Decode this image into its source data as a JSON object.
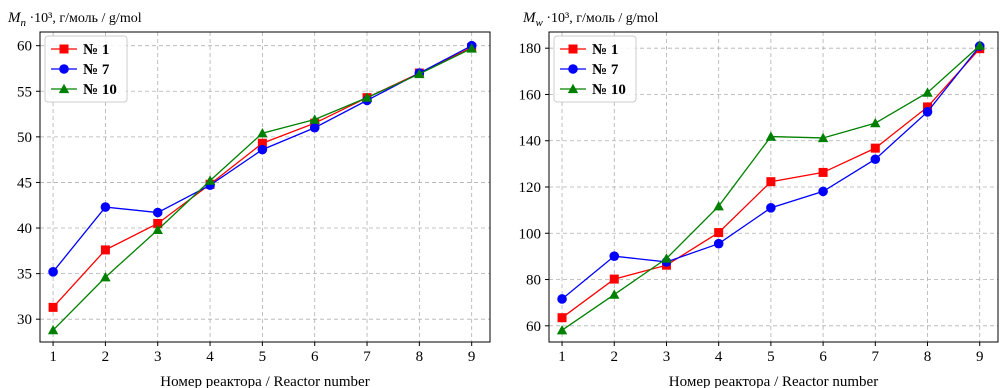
{
  "chart_data": [
    {
      "type": "line",
      "ylabel_main": "M",
      "ylabel_sub": "n",
      "ylabel_rest": " ·10³, г/моль / g/mol",
      "xlabel": "Номер реактора / Reactor number",
      "x": [
        1,
        2,
        3,
        4,
        5,
        6,
        7,
        8,
        9
      ],
      "xlim": [
        0.75,
        9.35
      ],
      "ylim": [
        27.5,
        61.5
      ],
      "yticks": [
        30,
        35,
        40,
        45,
        50,
        55,
        60
      ],
      "grid": true,
      "legend_position": "top-left",
      "series": [
        {
          "name": "№ 1",
          "color": "#ff0000",
          "marker": "square",
          "values": [
            31.3,
            37.6,
            40.5,
            44.8,
            49.3,
            51.5,
            54.3,
            57.0,
            59.8
          ]
        },
        {
          "name": "№ 7",
          "color": "#0000ff",
          "marker": "circle",
          "values": [
            35.2,
            42.3,
            41.7,
            44.7,
            48.6,
            51.0,
            54.0,
            57.0,
            60.0
          ]
        },
        {
          "name": "№ 10",
          "color": "#008000",
          "marker": "triangle",
          "values": [
            28.8,
            34.6,
            39.8,
            45.2,
            50.4,
            51.9,
            54.3,
            56.9,
            59.7
          ]
        }
      ]
    },
    {
      "type": "line",
      "ylabel_main": "M",
      "ylabel_sub": "w",
      "ylabel_rest": " ·10³, г/моль / g/mol",
      "xlabel": "Номер реактора / Reactor number",
      "x": [
        1,
        2,
        3,
        4,
        5,
        6,
        7,
        8,
        9
      ],
      "xlim": [
        0.75,
        9.35
      ],
      "ylim": [
        53,
        187
      ],
      "yticks": [
        60,
        80,
        100,
        120,
        140,
        160,
        180
      ],
      "grid": true,
      "legend_position": "top-left",
      "series": [
        {
          "name": "№ 1",
          "color": "#ff0000",
          "marker": "square",
          "values": [
            63.5,
            80.2,
            86.2,
            100.3,
            122.3,
            126.3,
            136.8,
            154.6,
            179.8
          ]
        },
        {
          "name": "№ 7",
          "color": "#0000ff",
          "marker": "circle",
          "values": [
            71.6,
            90.1,
            87.6,
            95.5,
            111.0,
            118.1,
            132.0,
            152.5,
            180.9
          ]
        },
        {
          "name": "№ 10",
          "color": "#008000",
          "marker": "triangle",
          "values": [
            58.1,
            73.5,
            89.1,
            111.7,
            141.8,
            141.2,
            147.6,
            160.8,
            181.1
          ]
        }
      ]
    }
  ]
}
